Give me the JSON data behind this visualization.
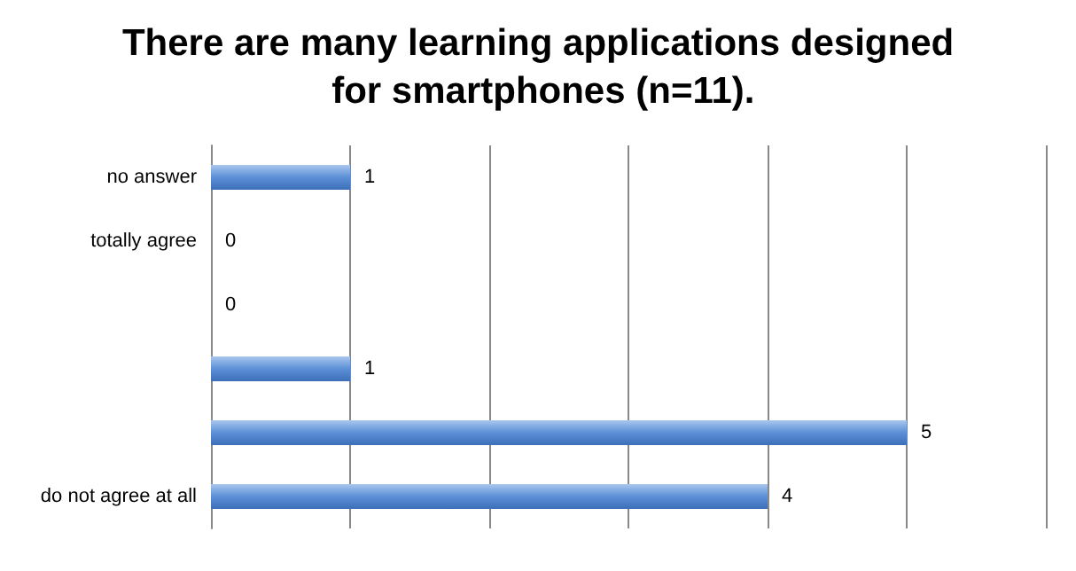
{
  "chart_data": {
    "type": "bar",
    "orientation": "horizontal",
    "title": "There are many learning applications designed for smartphones (n=11).",
    "categories": [
      "no answer",
      "totally agree",
      null,
      null,
      null,
      "do not agree at all"
    ],
    "values": [
      1,
      0,
      0,
      1,
      5,
      4
    ],
    "color": "#5b8fd6",
    "data_labels": true,
    "xlim": [
      0,
      6
    ],
    "xticks": [
      {
        "value": 0,
        "label": null
      },
      {
        "value": 1,
        "label": null
      },
      {
        "value": 2,
        "label": null
      },
      {
        "value": 3,
        "label": null
      },
      {
        "value": 4,
        "label": null
      },
      {
        "value": 5,
        "label": null
      },
      {
        "value": 6,
        "label": null
      }
    ],
    "tick_labels": "y",
    "grid": "x"
  }
}
